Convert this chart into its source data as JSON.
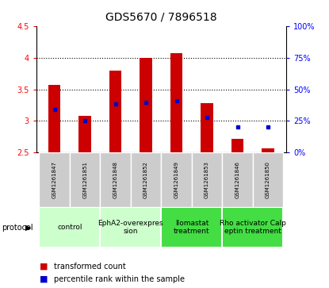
{
  "title": "GDS5670 / 7896518",
  "samples": [
    "GSM1261847",
    "GSM1261851",
    "GSM1261848",
    "GSM1261852",
    "GSM1261849",
    "GSM1261853",
    "GSM1261846",
    "GSM1261850"
  ],
  "transformed_count": [
    3.57,
    3.08,
    3.8,
    4.0,
    4.07,
    3.28,
    2.72,
    2.57
  ],
  "baseline": 2.5,
  "percentile_rank": [
    3.18,
    3.0,
    3.27,
    3.3,
    3.32,
    3.05,
    2.9,
    2.9
  ],
  "ylim_left": [
    2.5,
    4.5
  ],
  "ylim_right": [
    0,
    100
  ],
  "yticks_left": [
    2.5,
    3.0,
    3.5,
    4.0,
    4.5
  ],
  "yticks_right": [
    0,
    25,
    50,
    75,
    100
  ],
  "ytick_left_labels": [
    "2.5",
    "3",
    "3.5",
    "4",
    "4.5"
  ],
  "ytick_right_labels": [
    "0%",
    "25%",
    "50%",
    "75%",
    "100%"
  ],
  "protocols": [
    {
      "label": "control",
      "samples": [
        0,
        1
      ],
      "color": "#ccffcc"
    },
    {
      "label": "EphA2-overexpres\nsion",
      "samples": [
        2,
        3
      ],
      "color": "#ccffcc"
    },
    {
      "label": "Ilomastat\ntreatment",
      "samples": [
        4,
        5
      ],
      "color": "#44dd44"
    },
    {
      "label": "Rho activator Calp\neptin treatment",
      "samples": [
        6,
        7
      ],
      "color": "#44dd44"
    }
  ],
  "bar_color": "#cc0000",
  "dot_color": "#0000cc",
  "sample_bg_color": "#cccccc",
  "bar_width": 0.4,
  "title_fontsize": 10,
  "tick_fontsize": 7,
  "sample_fontsize": 5,
  "protocol_fontsize": 6.5,
  "legend_fontsize": 7
}
